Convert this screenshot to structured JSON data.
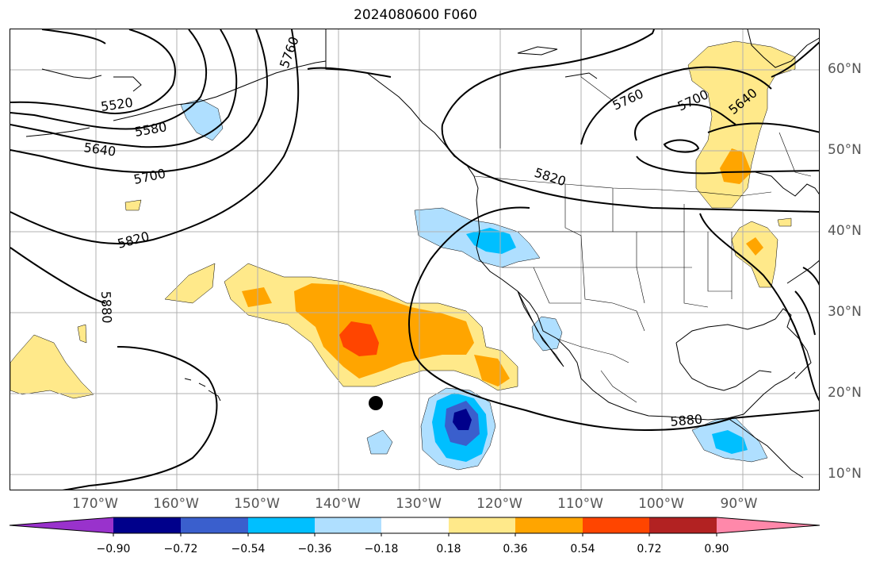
{
  "title": "2024080600 F060",
  "map": {
    "lon_labels": [
      "170°W",
      "160°W",
      "150°W",
      "140°W",
      "130°W",
      "120°W",
      "110°W",
      "100°W",
      "90°W"
    ],
    "lat_labels": [
      "60°N",
      "50°N",
      "40°N",
      "30°N",
      "20°N",
      "10°N"
    ],
    "contour_labels": [
      "5520",
      "5580",
      "5640",
      "5700",
      "5760",
      "5820",
      "5880",
      "5760",
      "5700",
      "5640",
      "5820",
      "5880"
    ],
    "marker": "storm-center-dot"
  },
  "colorbar": {
    "ticks": [
      "−0.90",
      "−0.72",
      "−0.54",
      "−0.36",
      "−0.18",
      "0.18",
      "0.36",
      "0.54",
      "0.72",
      "0.90"
    ],
    "colors": [
      "#9932cc",
      "#00008b",
      "#3a5fcd",
      "#00bfff",
      "#afdfff",
      "#ffffff",
      "#ffe98a",
      "#ffa500",
      "#ff4500",
      "#b22222",
      "#ff88aa"
    ]
  }
}
